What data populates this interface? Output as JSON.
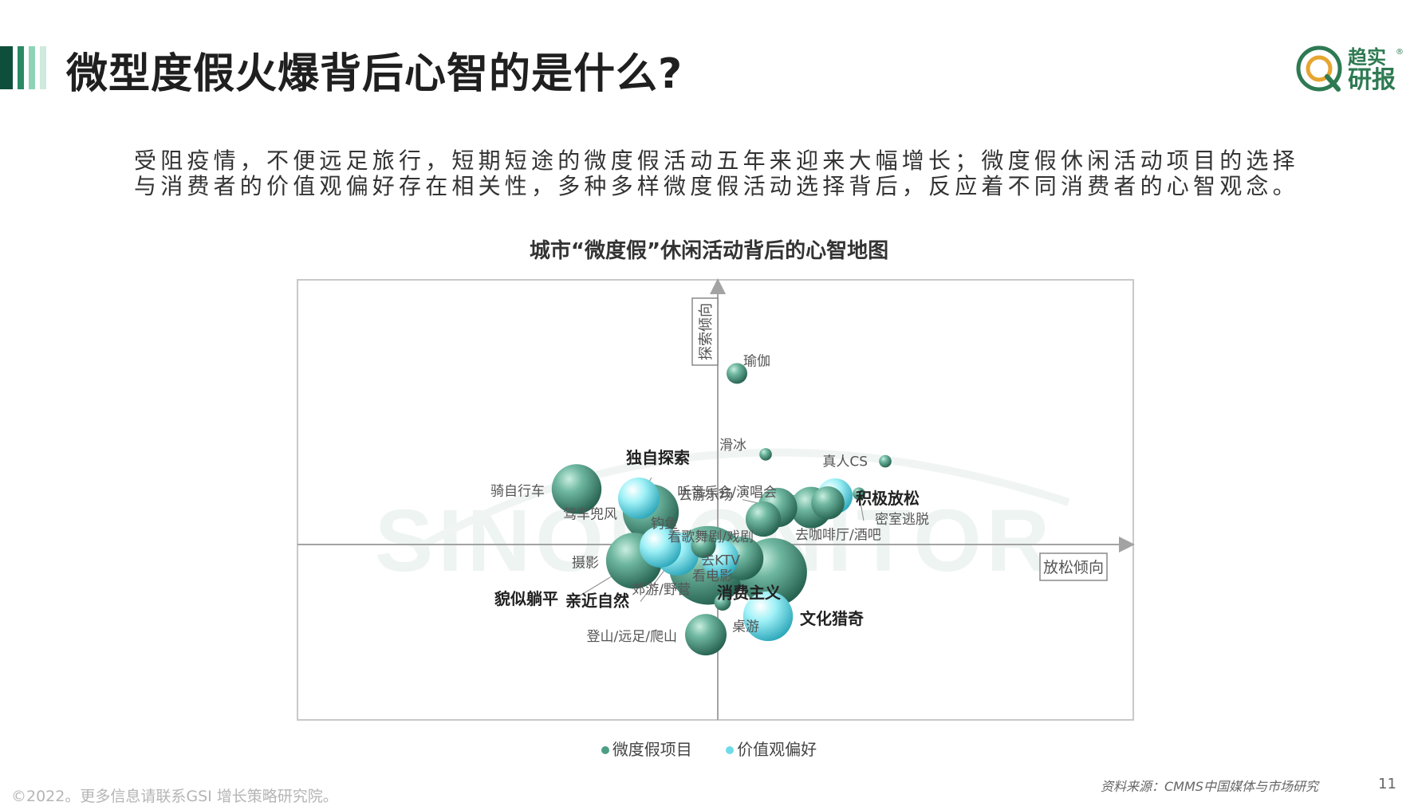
{
  "page": {
    "title": "微型度假火爆背后心智的是什么?",
    "intro": "受阻疫情，不便远足旅行，短期短途的微度假活动五年来迎来大幅增长；微度假休闲活动项目的选择与消费者的价值观偏好存在相关性，多种多样微度假活动选择背后，反应着不同消费者的心智观念。",
    "logo": {
      "brand": "趋实",
      "sub": "研报",
      "reg": "®"
    },
    "source": "资料来源：CMMS中国媒体与市场研究",
    "page_number": "11",
    "copyright": "©2022。更多信息请联系GSI 增长策略研究院。",
    "accent_colors": [
      "#0e4f3c",
      "#2a8a66",
      "#8fd3b6",
      "#cfe9dc"
    ],
    "watermark": "SINOMONITOR"
  },
  "chart_data": {
    "type": "scatter",
    "title": "城市“微度假”休闲活动背后的心智地图",
    "xlabel": "放松倾向",
    "ylabel": "探索倾向",
    "xlim": [
      -10,
      10
    ],
    "ylim": [
      -10,
      10
    ],
    "grid": false,
    "legend_position": "bottom",
    "series": [
      {
        "name": "微度假项目",
        "color": "#4e9e86",
        "points": [
          {
            "label": "瑜伽",
            "x": 0.8,
            "y": 7.4,
            "size": 1
          },
          {
            "label": "滑冰",
            "x": 2.0,
            "y": 3.9,
            "size": 0.6
          },
          {
            "label": "真人CS",
            "x": 7.0,
            "y": 3.6,
            "size": 0.6
          },
          {
            "label": "密室逃脱",
            "x": 5.9,
            "y": 2.2,
            "size": 0.6
          },
          {
            "label": "听音乐会/演唱会",
            "x": 4.6,
            "y": 1.8,
            "size": 1.6
          },
          {
            "label": "去游乐场",
            "x": 2.5,
            "y": 1.6,
            "size": 1.9
          },
          {
            "label": "去咖啡厅/酒吧",
            "x": 3.9,
            "y": 1.6,
            "size": 2.0
          },
          {
            "label": "看歌舞剧/戏剧",
            "x": 1.9,
            "y": 1.1,
            "size": 1.7
          },
          {
            "label": "骑自行车",
            "x": -5.9,
            "y": 2.4,
            "size": 2.4
          },
          {
            "label": "驾车兜风",
            "x": -2.8,
            "y": 1.4,
            "size": 2.7
          },
          {
            "label": "钓鱼",
            "x": -0.6,
            "y": -0.05,
            "size": 1.2
          },
          {
            "label": "去KTV",
            "x": 1.0,
            "y": -0.6,
            "size": 2.1
          },
          {
            "label": "看电影",
            "x": 2.3,
            "y": -1.2,
            "size": 3.3
          },
          {
            "label": "摄影",
            "x": -3.5,
            "y": -0.7,
            "size": 2.7
          },
          {
            "label": "郊游/野营",
            "x": -0.4,
            "y": -0.9,
            "size": 3.8
          },
          {
            "label": "桌游",
            "x": 0.2,
            "y": -2.5,
            "size": 0.8
          },
          {
            "label": "登山/远足/爬山",
            "x": -0.5,
            "y": -3.9,
            "size": 2.0
          }
        ]
      },
      {
        "name": "价值观偏好",
        "color": "#6fdbe8",
        "points": [
          {
            "label": "独自探索",
            "x": -3.3,
            "y": 2.0,
            "size": 2.0
          },
          {
            "label": "积极放松",
            "x": 4.9,
            "y": 2.1,
            "size": 1.7
          },
          {
            "label": "貌似躺平",
            "x": -2.4,
            "y": -0.1,
            "size": 2.0
          },
          {
            "label": "亲近自然",
            "x": -1.7,
            "y": -0.4,
            "size": 2.1
          },
          {
            "label": "消费主义",
            "x": 0.1,
            "y": -0.6,
            "size": 1.8
          },
          {
            "label": "文化猎奇",
            "x": 2.1,
            "y": -3.1,
            "size": 2.4
          }
        ]
      }
    ]
  }
}
